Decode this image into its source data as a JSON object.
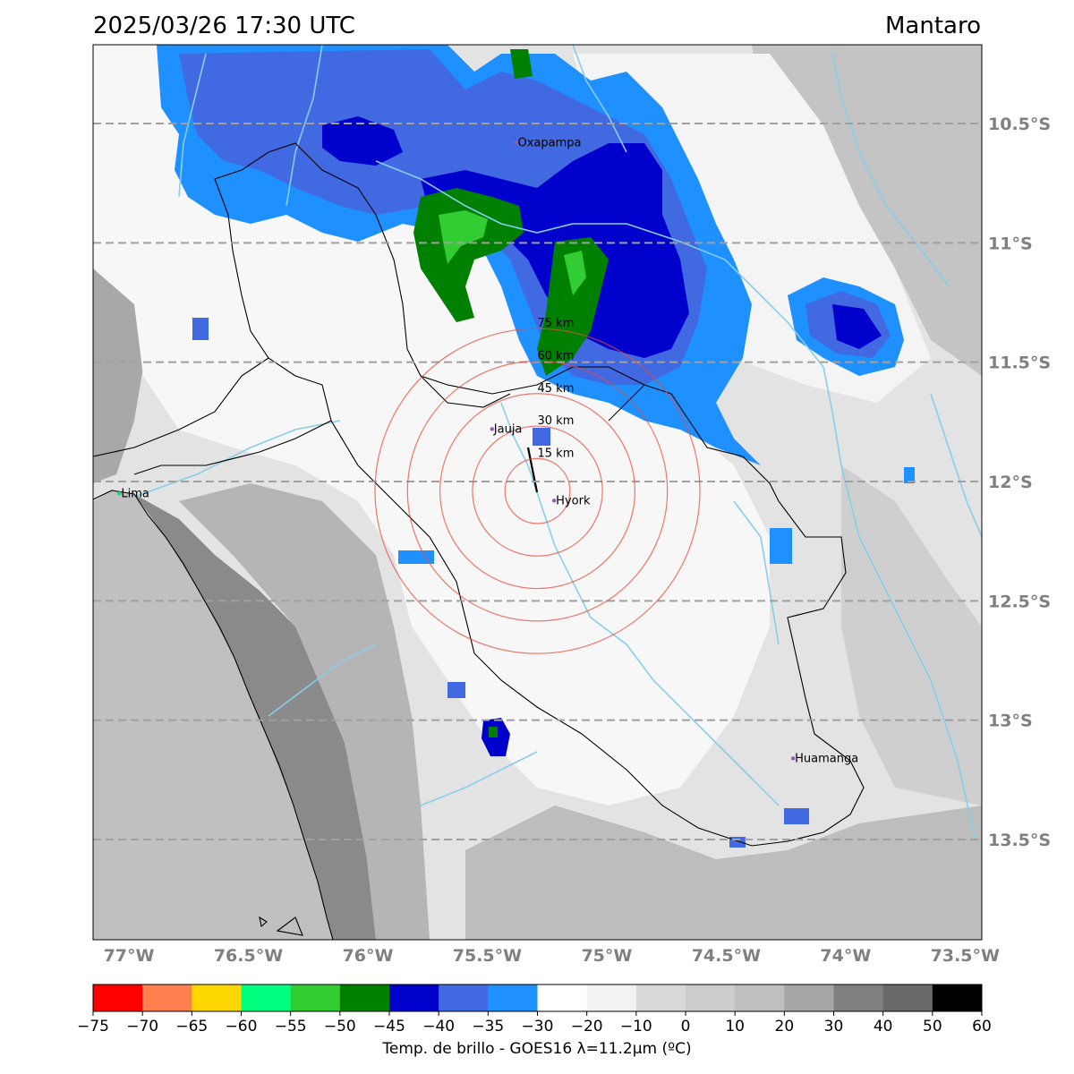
{
  "header": {
    "datetime": "2025/03/26 17:30 UTC",
    "region": "Mantaro"
  },
  "map": {
    "lon_range": [
      -77.15,
      -73.43
    ],
    "lat_range": [
      -13.92,
      -10.17
    ],
    "lon_ticks": [
      {
        "value": -77.0,
        "label": "77°W"
      },
      {
        "value": -76.5,
        "label": "76.5°W"
      },
      {
        "value": -76.0,
        "label": "76°W"
      },
      {
        "value": -75.5,
        "label": "75.5°W"
      },
      {
        "value": -75.0,
        "label": "75°W"
      },
      {
        "value": -74.5,
        "label": "74.5°W"
      },
      {
        "value": -74.0,
        "label": "74°W"
      },
      {
        "value": -73.5,
        "label": "73.5°W"
      }
    ],
    "lat_ticks": [
      {
        "value": -10.5,
        "label": "10.5°S"
      },
      {
        "value": -11.0,
        "label": "11°S"
      },
      {
        "value": -11.5,
        "label": "11.5°S"
      },
      {
        "value": -12.0,
        "label": "12°S"
      },
      {
        "value": -12.5,
        "label": "12.5°S"
      },
      {
        "value": -13.0,
        "label": "13°S"
      },
      {
        "value": -13.5,
        "label": "13.5°S"
      }
    ],
    "cities": [
      {
        "name": "Oxapampa",
        "lon": -75.38,
        "lat": -10.58,
        "color": "#9b59b6"
      },
      {
        "name": "Jauja",
        "lon": -75.48,
        "lat": -11.78,
        "color": "#9b59b6"
      },
      {
        "name": "Hyork",
        "lon": -75.22,
        "lat": -12.08,
        "color": "#9b59b6"
      },
      {
        "name": "Lima",
        "lon": -77.04,
        "lat": -12.05,
        "color": "#2ecc71"
      },
      {
        "name": "Huamanga",
        "lon": -74.22,
        "lat": -13.16,
        "color": "#9b59b6"
      }
    ],
    "range_rings": {
      "center": {
        "lon": -75.29,
        "lat": -12.04
      },
      "color": "#e74c3c",
      "rings": [
        {
          "label": "15 km"
        },
        {
          "label": "30 km"
        },
        {
          "label": "45 km"
        },
        {
          "label": "60 km"
        },
        {
          "label": "75 km"
        }
      ]
    },
    "colors": {
      "river": "#87ceeb",
      "boundary": "#000000",
      "grid": "#a0a0a0",
      "tick_label": "#808080"
    }
  },
  "colorbar": {
    "label": "Temp. de brillo - GOES16 λ=11.2μm (ºC)",
    "boundaries": [
      -75,
      -70,
      -65,
      -60,
      -55,
      -50,
      -45,
      -40,
      -35,
      -30,
      -20,
      -10,
      0,
      10,
      20,
      30,
      40,
      50,
      60
    ],
    "tick_labels": [
      "−75",
      "−70",
      "−65",
      "−60",
      "−55",
      "−50",
      "−45",
      "−40",
      "−35",
      "−30",
      "−20",
      "−10",
      "0",
      "10",
      "20",
      "30",
      "40",
      "50",
      "60"
    ],
    "colors": [
      "#ff0000",
      "#ff7f50",
      "#ffd700",
      "#00ff7f",
      "#32cd32",
      "#008000",
      "#0000cd",
      "#4169e1",
      "#1e90ff",
      "#ffffff",
      "#f2f2f2",
      "#d9d9d9",
      "#cccccc",
      "#bfbfbf",
      "#a6a6a6",
      "#808080",
      "#696969",
      "#000000"
    ]
  }
}
